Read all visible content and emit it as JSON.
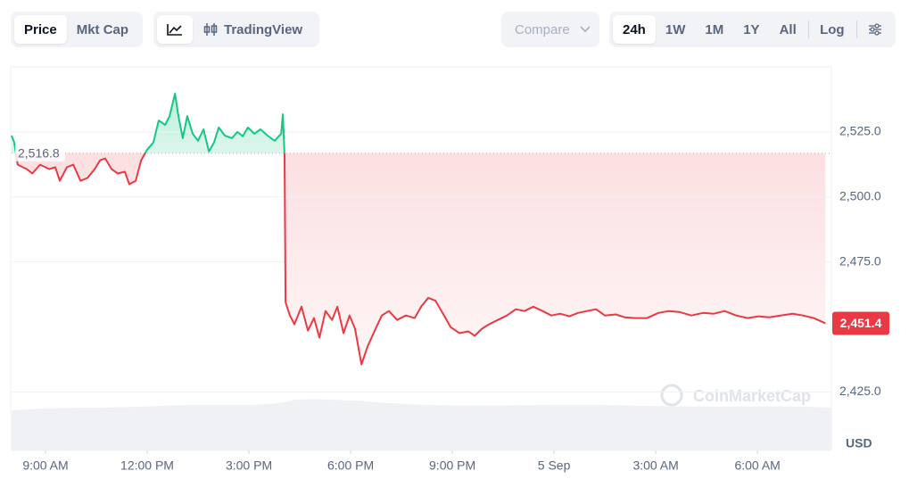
{
  "toolbar": {
    "price": "Price",
    "mkt_cap": "Mkt Cap",
    "tradingview": "TradingView",
    "compare": "Compare",
    "ranges": [
      "24h",
      "1W",
      "1M",
      "1Y",
      "All"
    ],
    "log": "Log"
  },
  "chart_data": {
    "type": "line",
    "x": [
      -1.0,
      -0.92,
      -0.82,
      -0.55,
      -0.39,
      -0.16,
      0.11,
      0.29,
      0.42,
      0.63,
      0.82,
      1.03,
      1.24,
      1.45,
      1.61,
      1.76,
      1.95,
      2.13,
      2.34,
      2.47,
      2.66,
      2.82,
      3.0,
      3.18,
      3.34,
      3.53,
      3.66,
      3.82,
      3.92,
      4.05,
      4.18,
      4.34,
      4.5,
      4.66,
      4.82,
      4.97,
      5.11,
      5.29,
      5.5,
      5.66,
      5.82,
      5.97,
      6.16,
      6.34,
      6.55,
      6.76,
      6.95,
      7.0,
      7.05,
      7.08,
      7.21,
      7.34,
      7.55,
      7.74,
      7.92,
      8.08,
      8.26,
      8.45,
      8.61,
      8.79,
      8.97,
      9.13,
      9.32,
      9.5,
      9.71,
      9.92,
      10.13,
      10.37,
      10.63,
      10.89,
      11.08,
      11.29,
      11.5,
      11.71,
      11.95,
      12.21,
      12.47,
      12.66,
      12.87,
      13.08,
      13.34,
      13.61,
      13.87,
      14.13,
      14.39,
      14.66,
      14.92,
      15.18,
      15.45,
      15.71,
      15.97,
      16.24,
      16.5,
      16.82,
      17.08,
      17.39,
      17.74,
      18.08,
      18.39,
      18.71,
      19.05,
      19.39,
      19.71,
      20.03,
      20.37,
      20.71,
      21.03,
      21.34,
      21.68,
      22.03,
      22.34,
      22.66,
      23.0
    ],
    "series": [
      {
        "name": "Price",
        "values": [
          2523.6,
          2520.9,
          2512.4,
          2510.7,
          2509,
          2512.4,
          2510.7,
          2511.4,
          2506.2,
          2511.4,
          2512.4,
          2506.2,
          2507.3,
          2510.7,
          2514.1,
          2514.8,
          2510.7,
          2509,
          2509.7,
          2504.9,
          2506.2,
          2514.1,
          2518.2,
          2520.9,
          2529.4,
          2527.7,
          2531.1,
          2539.7,
          2531.1,
          2522.6,
          2531.1,
          2524.3,
          2521.6,
          2526,
          2517.5,
          2520.9,
          2526.7,
          2523.6,
          2522.6,
          2525,
          2523.3,
          2526.7,
          2524.3,
          2526,
          2523.6,
          2521.6,
          2524.3,
          2531.8,
          2515.8,
          2459.5,
          2454.4,
          2451,
          2457.8,
          2448.6,
          2453.4,
          2445.9,
          2456.1,
          2452.7,
          2457.8,
          2447.6,
          2454.4,
          2449.3,
          2435.6,
          2442.5,
          2448.6,
          2454.4,
          2456.1,
          2452.7,
          2454.4,
          2453.4,
          2457.8,
          2461.2,
          2460.1,
          2455.4,
          2449.9,
          2447.6,
          2448.3,
          2446.6,
          2449.3,
          2451,
          2452.7,
          2454.4,
          2456.8,
          2456.1,
          2457.8,
          2456.1,
          2454.4,
          2455.1,
          2454.1,
          2455.4,
          2456.1,
          2456.8,
          2454.4,
          2454.8,
          2453.7,
          2453.4,
          2453.4,
          2455.4,
          2456.1,
          2455.7,
          2454.4,
          2455.4,
          2455.1,
          2456.1,
          2454.4,
          2453.4,
          2454.1,
          2453.7,
          2454.4,
          2455.1,
          2454.4,
          2453.4,
          2451.4
        ]
      }
    ],
    "up_color": "#16c784",
    "down_color": "#ea3943",
    "baseline": {
      "value": 2516.8,
      "label": "2,516.8"
    },
    "price_badge": {
      "value": 2451.4,
      "label": "2,451.4"
    },
    "xlim": [
      -1,
      23.18
    ],
    "xticks": [
      {
        "value": 0,
        "label": "9:00 AM"
      },
      {
        "value": 3,
        "label": "12:00 PM"
      },
      {
        "value": 6,
        "label": "3:00 PM"
      },
      {
        "value": 9,
        "label": "6:00 PM"
      },
      {
        "value": 12,
        "label": "9:00 PM"
      },
      {
        "value": 15,
        "label": "5 Sep"
      },
      {
        "value": 18,
        "label": "3:00 AM"
      },
      {
        "value": 21,
        "label": "6:00 AM"
      }
    ],
    "ylim": [
      2402.5,
      2550
    ],
    "yticks": [
      {
        "value": 2425,
        "label": "2,425.0"
      },
      {
        "value": 2475,
        "label": "2,475.0"
      },
      {
        "value": 2500,
        "label": "2,500.0"
      },
      {
        "value": 2525,
        "label": "2,525.0"
      }
    ],
    "y_unit": "USD",
    "watermark": "CoinMarketCap",
    "grid": true
  }
}
